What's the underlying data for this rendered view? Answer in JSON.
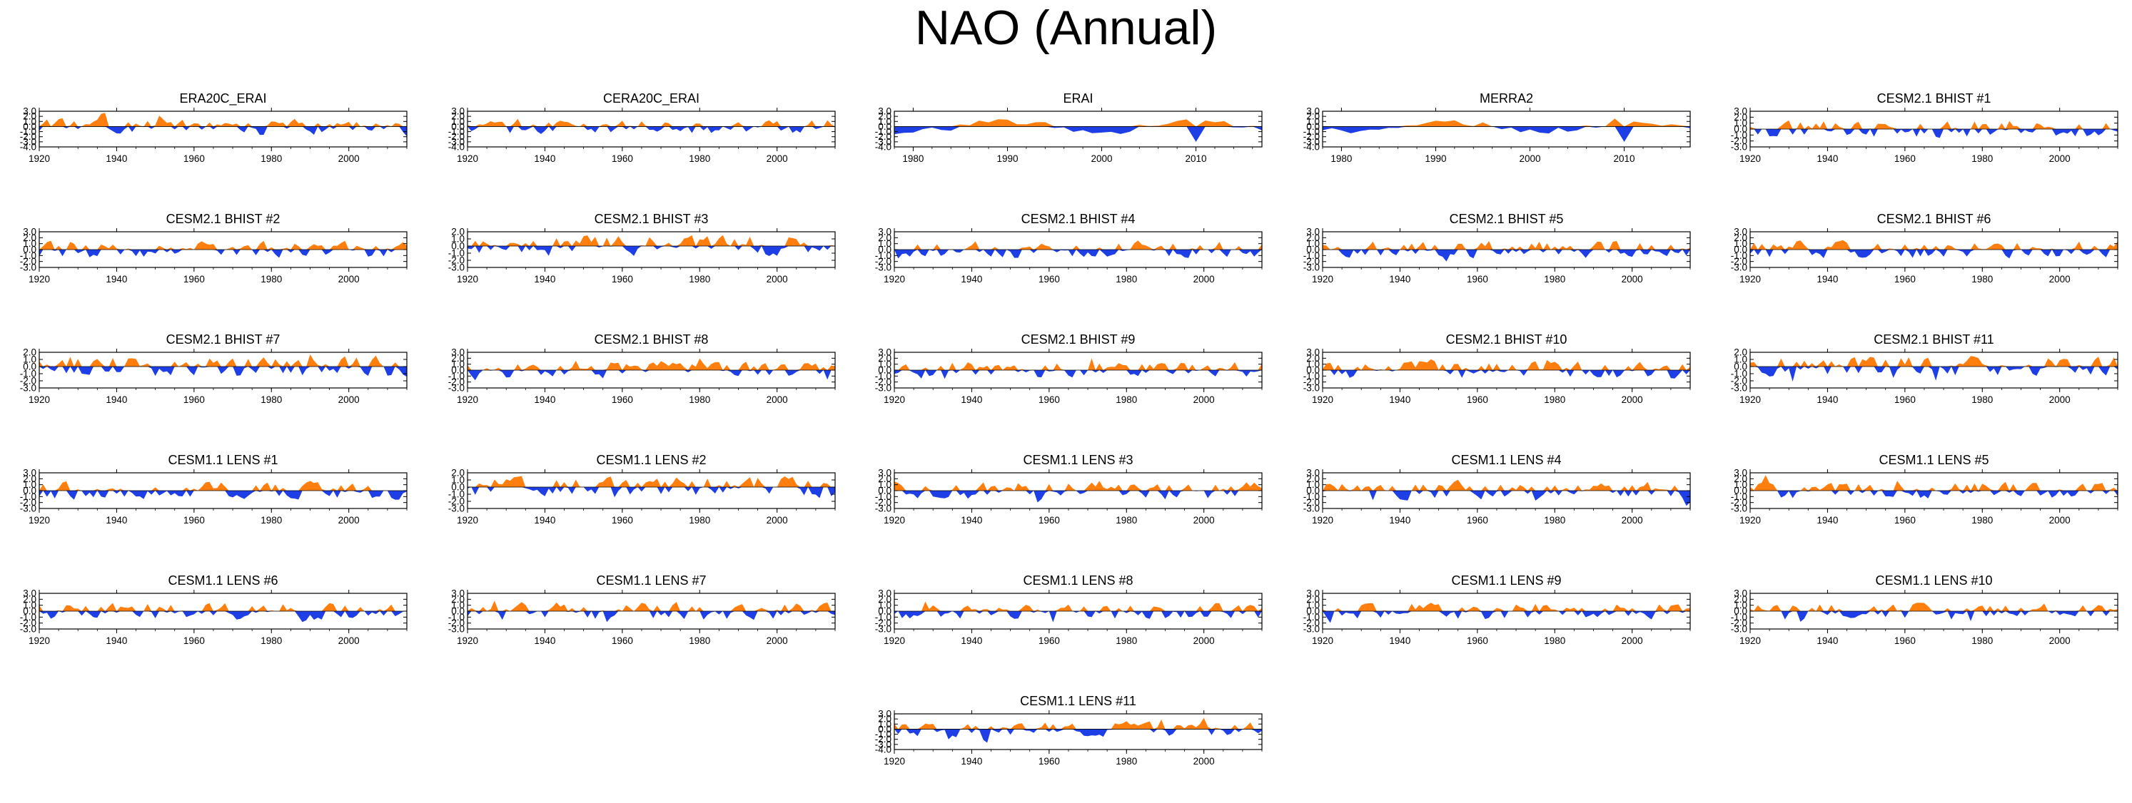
{
  "title": "NAO (Annual)",
  "colors": {
    "positive": "#ff7f0e",
    "negative": "#1f3fe6",
    "axis": "#000000"
  },
  "chart_data": [
    {
      "type": "area",
      "title": "ERA20C_ERAI",
      "xlim": [
        1920,
        2015
      ],
      "ylim": [
        -4.0,
        3.0
      ],
      "yticks": [
        "3.0",
        "2.0",
        "1.0",
        "0.0",
        "-1.0",
        "-2.0",
        "-3.0",
        "-4.0"
      ],
      "xticks": [
        "1920",
        "1940",
        "1960",
        "1980",
        "2000"
      ],
      "seed": 11,
      "wave": 0.05
    },
    {
      "type": "area",
      "title": "CERA20C_ERAI",
      "xlim": [
        1920,
        2015
      ],
      "ylim": [
        -4.0,
        3.0
      ],
      "yticks": [
        "3.0",
        "2.0",
        "1.0",
        "0.0",
        "-1.0",
        "-2.0",
        "-3.0",
        "-4.0"
      ],
      "xticks": [
        "1920",
        "1940",
        "1960",
        "1980",
        "2000"
      ],
      "seed": 17,
      "wave": 0.05
    },
    {
      "type": "area",
      "title": "ERAI",
      "xlim": [
        1978,
        2017
      ],
      "ylim": [
        -4.0,
        3.0
      ],
      "yticks": [
        "3.0",
        "2.0",
        "1.0",
        "0.0",
        "-1.0",
        "-2.0",
        "-3.0",
        "-4.0"
      ],
      "xticks": [
        "1980",
        "1990",
        "2000",
        "2010"
      ],
      "seed": 23,
      "wave": 0.0,
      "smooth": true
    },
    {
      "type": "area",
      "title": "MERRA2",
      "xlim": [
        1978,
        2017
      ],
      "ylim": [
        -4.0,
        3.0
      ],
      "yticks": [
        "3.0",
        "2.0",
        "1.0",
        "0.0",
        "-1.0",
        "-2.0",
        "-3.0",
        "-4.0"
      ],
      "xticks": [
        "1980",
        "1990",
        "2000",
        "2010"
      ],
      "seed": 29,
      "wave": 0.0,
      "smooth": true
    },
    {
      "type": "area",
      "title": "CESM2.1 BHIST #1",
      "xlim": [
        1920,
        2015
      ],
      "ylim": [
        -3.0,
        3.0
      ],
      "yticks": [
        "3.0",
        "2.0",
        "1.0",
        "0.0",
        "-1.0",
        "-2.0",
        "-3.0"
      ],
      "xticks": [
        "1920",
        "1940",
        "1960",
        "1980",
        "2000"
      ],
      "seed": 31,
      "wave": 0.0
    },
    {
      "type": "area",
      "title": "CESM2.1 BHIST #2",
      "xlim": [
        1920,
        2015
      ],
      "ylim": [
        -3.0,
        3.0
      ],
      "yticks": [
        "3.0",
        "2.0",
        "1.0",
        "0.0",
        "-1.0",
        "-2.0",
        "-3.0"
      ],
      "xticks": [
        "1920",
        "1940",
        "1960",
        "1980",
        "2000"
      ],
      "seed": 37,
      "wave": 0.0
    },
    {
      "type": "area",
      "title": "CESM2.1 BHIST #3",
      "xlim": [
        1920,
        2015
      ],
      "ylim": [
        -3.0,
        2.0
      ],
      "yticks": [
        "2.0",
        "1.0",
        "0.0",
        "-1.0",
        "-2.0",
        "-3.0"
      ],
      "xticks": [
        "1920",
        "1940",
        "1960",
        "1980",
        "2000"
      ],
      "seed": 41,
      "wave": 0.0
    },
    {
      "type": "area",
      "title": "CESM2.1 BHIST #4",
      "xlim": [
        1920,
        2015
      ],
      "ylim": [
        -3.0,
        3.0
      ],
      "yticks": [
        "3.0",
        "2.0",
        "1.0",
        "0.0",
        "-1.0",
        "-2.0",
        "-3.0"
      ],
      "xticks": [
        "1920",
        "1940",
        "1960",
        "1980",
        "2000"
      ],
      "seed": 43,
      "wave": 0.0
    },
    {
      "type": "area",
      "title": "CESM2.1 BHIST #5",
      "xlim": [
        1920,
        2015
      ],
      "ylim": [
        -3.0,
        3.0
      ],
      "yticks": [
        "3.0",
        "2.0",
        "1.0",
        "0.0",
        "-1.0",
        "-2.0",
        "-3.0"
      ],
      "xticks": [
        "1920",
        "1940",
        "1960",
        "1980",
        "2000"
      ],
      "seed": 47,
      "wave": 0.0
    },
    {
      "type": "area",
      "title": "CESM2.1 BHIST #6",
      "xlim": [
        1920,
        2015
      ],
      "ylim": [
        -3.0,
        3.0
      ],
      "yticks": [
        "3.0",
        "2.0",
        "1.0",
        "0.0",
        "-1.0",
        "-2.0",
        "-3.0"
      ],
      "xticks": [
        "1920",
        "1940",
        "1960",
        "1980",
        "2000"
      ],
      "seed": 53,
      "wave": 0.0
    },
    {
      "type": "area",
      "title": "CESM2.1 BHIST #7",
      "xlim": [
        1920,
        2015
      ],
      "ylim": [
        -3.0,
        2.0
      ],
      "yticks": [
        "2.0",
        "1.0",
        "0.0",
        "-1.0",
        "-2.0",
        "-3.0"
      ],
      "xticks": [
        "1920",
        "1940",
        "1960",
        "1980",
        "2000"
      ],
      "seed": 59,
      "wave": 0.0
    },
    {
      "type": "area",
      "title": "CESM2.1 BHIST #8",
      "xlim": [
        1920,
        2015
      ],
      "ylim": [
        -3.0,
        3.0
      ],
      "yticks": [
        "3.0",
        "2.0",
        "1.0",
        "0.0",
        "-1.0",
        "-2.0",
        "-3.0"
      ],
      "xticks": [
        "1920",
        "1940",
        "1960",
        "1980",
        "2000"
      ],
      "seed": 61,
      "wave": 0.0
    },
    {
      "type": "area",
      "title": "CESM2.1 BHIST #9",
      "xlim": [
        1920,
        2015
      ],
      "ylim": [
        -3.0,
        3.0
      ],
      "yticks": [
        "3.0",
        "2.0",
        "1.0",
        "0.0",
        "-1.0",
        "-2.0",
        "-3.0"
      ],
      "xticks": [
        "1920",
        "1940",
        "1960",
        "1980",
        "2000"
      ],
      "seed": 67,
      "wave": 0.0
    },
    {
      "type": "area",
      "title": "CESM2.1 BHIST #10",
      "xlim": [
        1920,
        2015
      ],
      "ylim": [
        -3.0,
        3.0
      ],
      "yticks": [
        "3.0",
        "2.0",
        "1.0",
        "0.0",
        "-1.0",
        "-2.0",
        "-3.0"
      ],
      "xticks": [
        "1920",
        "1940",
        "1960",
        "1980",
        "2000"
      ],
      "seed": 71,
      "wave": 0.0
    },
    {
      "type": "area",
      "title": "CESM2.1 BHIST #11",
      "xlim": [
        1920,
        2015
      ],
      "ylim": [
        -3.0,
        2.0
      ],
      "yticks": [
        "2.0",
        "1.0",
        "0.0",
        "-1.0",
        "-2.0",
        "-3.0"
      ],
      "xticks": [
        "1920",
        "1940",
        "1960",
        "1980",
        "2000"
      ],
      "seed": 73,
      "wave": 0.0
    },
    {
      "type": "area",
      "title": "CESM1.1 LENS #1",
      "xlim": [
        1920,
        2015
      ],
      "ylim": [
        -3.0,
        3.0
      ],
      "yticks": [
        "3.0",
        "2.0",
        "1.0",
        "0.0",
        "-1.0",
        "-2.0",
        "-3.0"
      ],
      "xticks": [
        "1920",
        "1940",
        "1960",
        "1980",
        "2000"
      ],
      "seed": 79,
      "wave": 0.0
    },
    {
      "type": "area",
      "title": "CESM1.1 LENS #2",
      "xlim": [
        1920,
        2015
      ],
      "ylim": [
        -3.0,
        2.0
      ],
      "yticks": [
        "2.0",
        "1.0",
        "0.0",
        "-1.0",
        "-2.0",
        "-3.0"
      ],
      "xticks": [
        "1920",
        "1940",
        "1960",
        "1980",
        "2000"
      ],
      "seed": 83,
      "wave": 0.0
    },
    {
      "type": "area",
      "title": "CESM1.1 LENS #3",
      "xlim": [
        1920,
        2015
      ],
      "ylim": [
        -3.0,
        3.0
      ],
      "yticks": [
        "3.0",
        "2.0",
        "1.0",
        "0.0",
        "-1.0",
        "-2.0",
        "-3.0"
      ],
      "xticks": [
        "1920",
        "1940",
        "1960",
        "1980",
        "2000"
      ],
      "seed": 89,
      "wave": 0.0
    },
    {
      "type": "area",
      "title": "CESM1.1 LENS #4",
      "xlim": [
        1920,
        2015
      ],
      "ylim": [
        -3.0,
        3.0
      ],
      "yticks": [
        "3.0",
        "2.0",
        "1.0",
        "0.0",
        "-1.0",
        "-2.0",
        "-3.0"
      ],
      "xticks": [
        "1920",
        "1940",
        "1960",
        "1980",
        "2000"
      ],
      "seed": 97,
      "wave": 0.0
    },
    {
      "type": "area",
      "title": "CESM1.1 LENS #5",
      "xlim": [
        1920,
        2015
      ],
      "ylim": [
        -3.0,
        3.0
      ],
      "yticks": [
        "3.0",
        "2.0",
        "1.0",
        "0.0",
        "-1.0",
        "-2.0",
        "-3.0"
      ],
      "xticks": [
        "1920",
        "1940",
        "1960",
        "1980",
        "2000"
      ],
      "seed": 101,
      "wave": 0.0
    },
    {
      "type": "area",
      "title": "CESM1.1 LENS #6",
      "xlim": [
        1920,
        2015
      ],
      "ylim": [
        -3.0,
        3.0
      ],
      "yticks": [
        "3.0",
        "2.0",
        "1.0",
        "0.0",
        "-1.0",
        "-2.0",
        "-3.0"
      ],
      "xticks": [
        "1920",
        "1940",
        "1960",
        "1980",
        "2000"
      ],
      "seed": 103,
      "wave": 0.0
    },
    {
      "type": "area",
      "title": "CESM1.1 LENS #7",
      "xlim": [
        1920,
        2015
      ],
      "ylim": [
        -3.0,
        3.0
      ],
      "yticks": [
        "3.0",
        "2.0",
        "1.0",
        "0.0",
        "-1.0",
        "-2.0",
        "-3.0"
      ],
      "xticks": [
        "1920",
        "1940",
        "1960",
        "1980",
        "2000"
      ],
      "seed": 107,
      "wave": 0.0
    },
    {
      "type": "area",
      "title": "CESM1.1 LENS #8",
      "xlim": [
        1920,
        2015
      ],
      "ylim": [
        -3.0,
        3.0
      ],
      "yticks": [
        "3.0",
        "2.0",
        "1.0",
        "0.0",
        "-1.0",
        "-2.0",
        "-3.0"
      ],
      "xticks": [
        "1920",
        "1940",
        "1960",
        "1980",
        "2000"
      ],
      "seed": 109,
      "wave": 0.0
    },
    {
      "type": "area",
      "title": "CESM1.1 LENS #9",
      "xlim": [
        1920,
        2015
      ],
      "ylim": [
        -3.0,
        3.0
      ],
      "yticks": [
        "3.0",
        "2.0",
        "1.0",
        "0.0",
        "-1.0",
        "-2.0",
        "-3.0"
      ],
      "xticks": [
        "1920",
        "1940",
        "1960",
        "1980",
        "2000"
      ],
      "seed": 113,
      "wave": 0.0
    },
    {
      "type": "area",
      "title": "CESM1.1 LENS #10",
      "xlim": [
        1920,
        2015
      ],
      "ylim": [
        -3.0,
        3.0
      ],
      "yticks": [
        "3.0",
        "2.0",
        "1.0",
        "0.0",
        "-1.0",
        "-2.0",
        "-3.0"
      ],
      "xticks": [
        "1920",
        "1940",
        "1960",
        "1980",
        "2000"
      ],
      "seed": 127,
      "wave": 0.0
    },
    {
      "type": "area",
      "title": "CESM1.1 LENS #11",
      "xlim": [
        1920,
        2015
      ],
      "ylim": [
        -4.0,
        3.0
      ],
      "yticks": [
        "3.0",
        "2.0",
        "1.0",
        "0.0",
        "-1.0",
        "-2.0",
        "-3.0",
        "-4.0"
      ],
      "xticks": [
        "1920",
        "1940",
        "1960",
        "1980",
        "2000"
      ],
      "seed": 131,
      "wave": 0.0
    }
  ]
}
